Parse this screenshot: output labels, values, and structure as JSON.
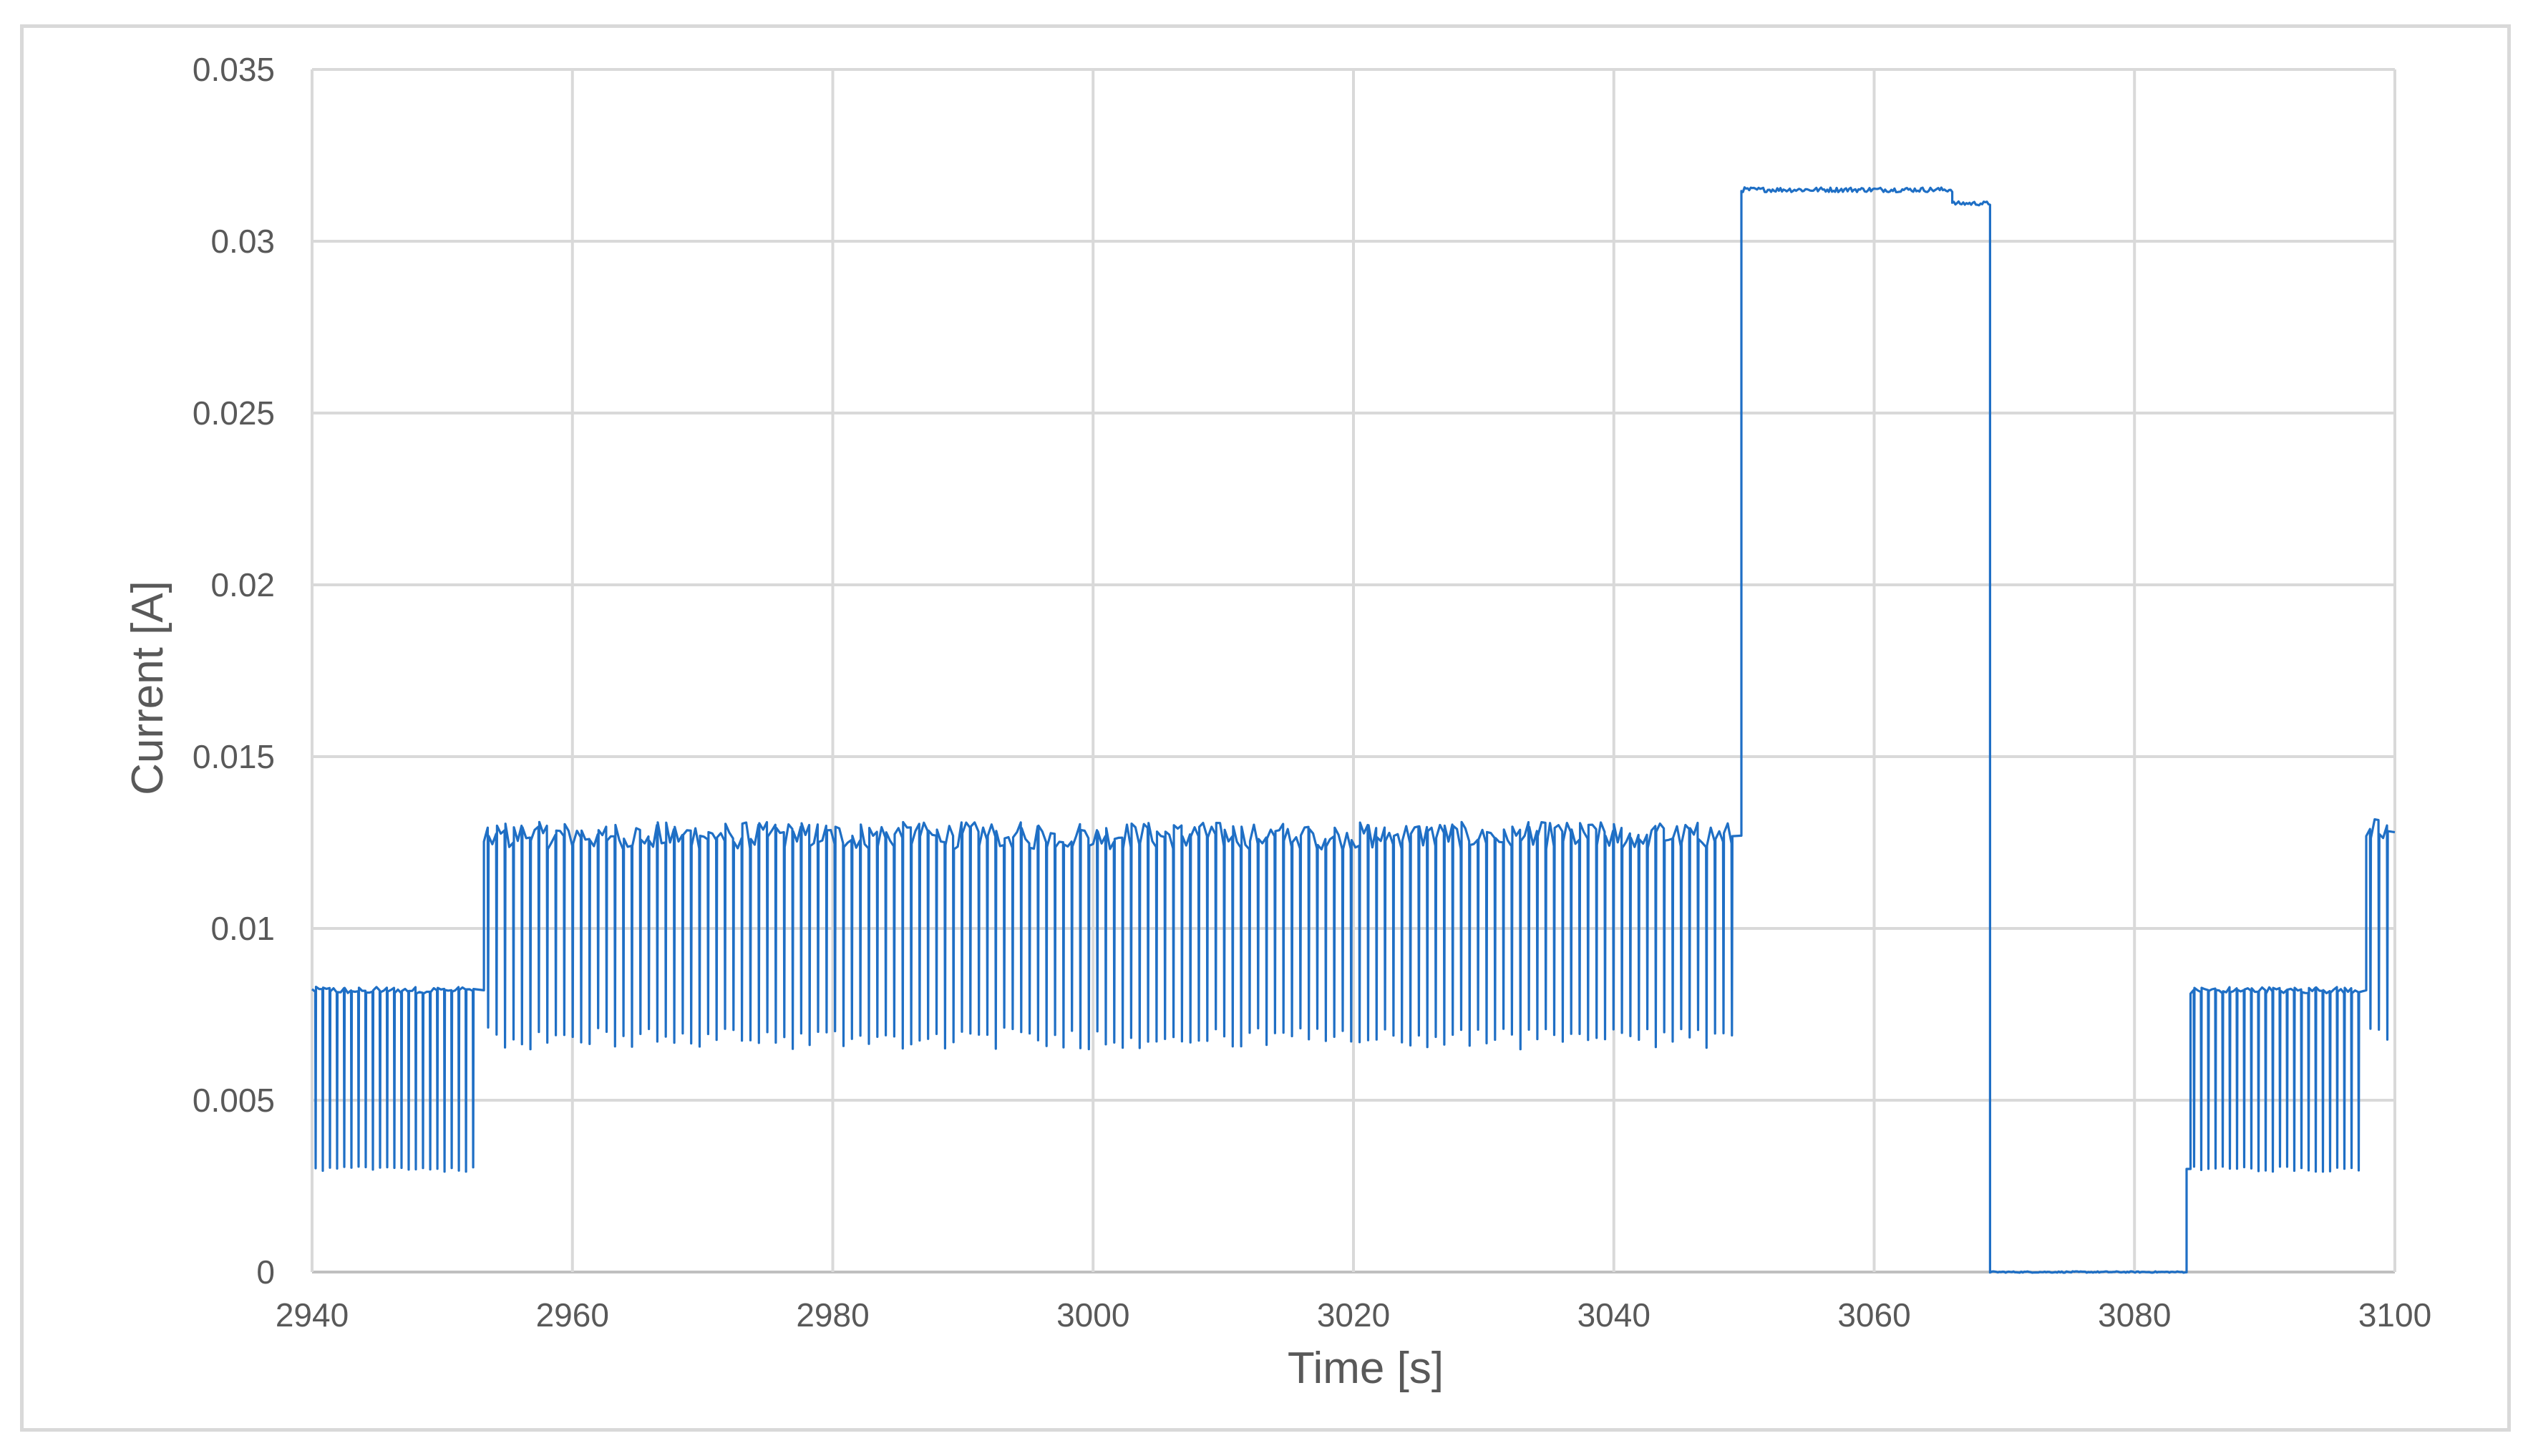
{
  "chart_data": {
    "type": "line",
    "title": "",
    "xlabel": "Time [s]",
    "ylabel": "Current [A]",
    "xlim": [
      2940,
      3100
    ],
    "ylim": [
      0,
      0.035
    ],
    "x_ticks": [
      2940,
      2960,
      2980,
      3000,
      3020,
      3040,
      3060,
      3080,
      3100
    ],
    "x_tick_labels": [
      "2940",
      "2960",
      "2980",
      "3000",
      "3020",
      "3040",
      "3060",
      "3080",
      "3100"
    ],
    "y_ticks": [
      0,
      0.005,
      0.01,
      0.015,
      0.02,
      0.025,
      0.03,
      0.035
    ],
    "y_tick_labels": [
      "0",
      "0.005",
      "0.01",
      "0.015",
      "0.02",
      "0.025",
      "0.03",
      "0.035"
    ],
    "grid": true,
    "legend": "none",
    "series_color": "#1f6fc5",
    "series": [
      {
        "segments": [
          {
            "t_start": 2940.0,
            "t_end": 2953.2,
            "kind": "pulsed",
            "high": 0.0082,
            "low": 0.003,
            "period": 0.55,
            "jitter": 0.0001
          },
          {
            "t_start": 2953.2,
            "t_end": 3049.8,
            "kind": "pulsed",
            "high": 0.0127,
            "low": 0.0068,
            "period": 0.65,
            "jitter": 0.0004
          },
          {
            "t_start": 3049.8,
            "t_end": 3066.0,
            "kind": "level",
            "value": 0.0315,
            "jitter": 7e-05
          },
          {
            "t_start": 3066.0,
            "t_end": 3068.9,
            "kind": "level",
            "value": 0.0311,
            "jitter": 6e-05
          },
          {
            "t_start": 3068.9,
            "t_end": 3084.0,
            "kind": "level",
            "value": 0.0,
            "jitter": 2e-05
          },
          {
            "t_start": 3084.0,
            "t_end": 3084.3,
            "kind": "level",
            "value": 0.003,
            "jitter": 0.0
          },
          {
            "t_start": 3084.3,
            "t_end": 3097.8,
            "kind": "pulsed",
            "high": 0.0082,
            "low": 0.003,
            "period": 0.55,
            "jitter": 0.0001
          },
          {
            "t_start": 3097.8,
            "t_end": 3100.0,
            "kind": "pulsed",
            "high": 0.0128,
            "low": 0.0068,
            "period": 0.65,
            "jitter": 0.0004
          }
        ]
      }
    ]
  }
}
